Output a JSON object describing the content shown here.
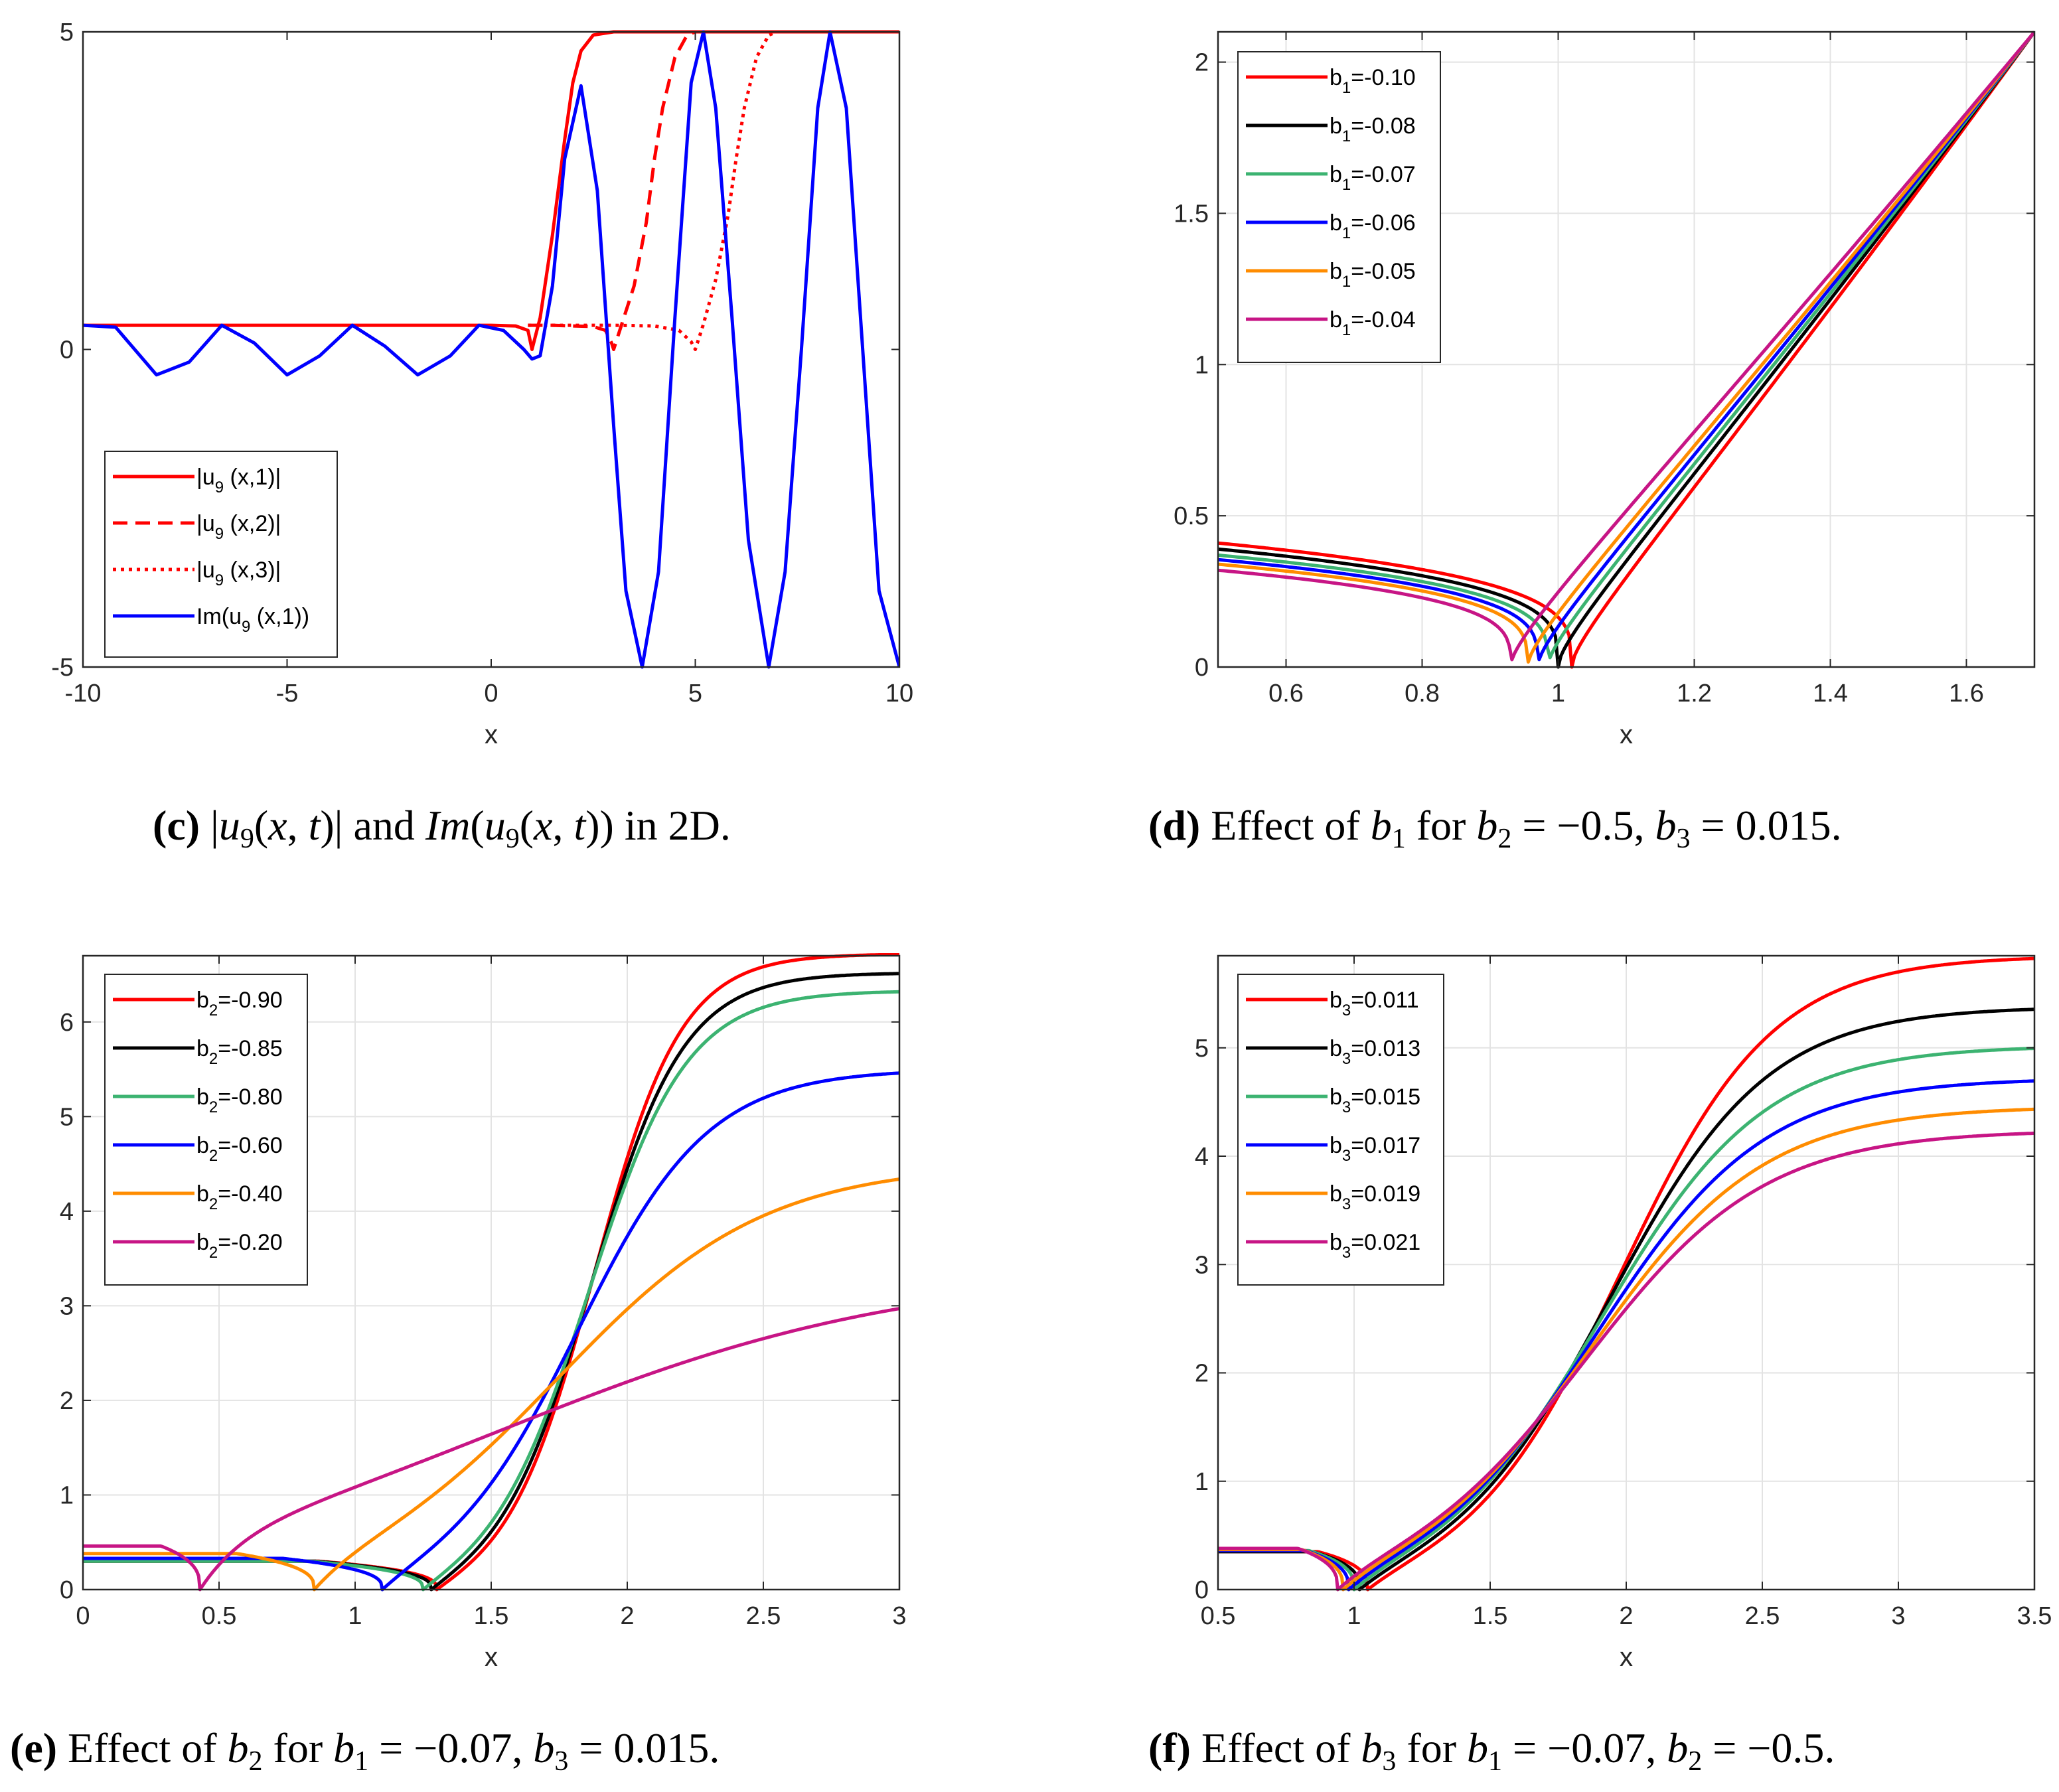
{
  "chart_data": [
    {
      "id": "c",
      "type": "line",
      "xlim": [
        -10,
        10
      ],
      "ylim": [
        -5,
        5
      ],
      "xticks": [
        -10,
        -5,
        0,
        5,
        10
      ],
      "yticks": [
        -5,
        0,
        5
      ],
      "tick_labels_x": [
        "-10",
        "-5",
        "0",
        "5",
        "10"
      ],
      "tick_labels_y": [
        "-5",
        "0",
        "5"
      ],
      "xlabel": "x",
      "ylabel": "",
      "grid": false,
      "legend_position": "bottom-left",
      "caption": {
        "tag": "(c)",
        "text": "|u9(x, t)| and Im(u9(x, t)) in 2D."
      },
      "series": [
        {
          "legend_main": "|u",
          "legend_sub": "9",
          "legend_rest": " (x,1)|",
          "color": "#ff0000",
          "dash": "solid",
          "x": [
            -10,
            -8,
            -6,
            -4,
            -2,
            0,
            0.6,
            0.9,
            1.0,
            1.2,
            1.5,
            1.8,
            2.0,
            2.2,
            2.5,
            3,
            5,
            7,
            10
          ],
          "y": [
            0.38,
            0.38,
            0.38,
            0.38,
            0.38,
            0.38,
            0.37,
            0.3,
            0.0,
            0.5,
            1.8,
            3.3,
            4.2,
            4.7,
            4.95,
            5,
            5,
            5,
            5
          ]
        },
        {
          "legend_main": "|u",
          "legend_sub": "9",
          "legend_rest": " (x,2)|",
          "color": "#ff0000",
          "dash": "dash",
          "x": [
            0.9,
            1.5,
            2.0,
            2.5,
            2.8,
            2.95,
            3.0,
            3.2,
            3.5,
            3.8,
            4.0,
            4.2,
            4.5,
            4.8,
            5.0
          ],
          "y": [
            0.38,
            0.38,
            0.37,
            0.36,
            0.3,
            0.1,
            0.0,
            0.4,
            1.0,
            2.0,
            3.0,
            3.8,
            4.6,
            4.95,
            5.0
          ]
        },
        {
          "legend_main": "|u",
          "legend_sub": "9",
          "legend_rest": " (x,3)|",
          "color": "#ff0000",
          "dash": "dot",
          "x": [
            0.9,
            2.0,
            3.0,
            4.0,
            4.6,
            4.9,
            5.0,
            5.2,
            5.5,
            5.8,
            6.0,
            6.2,
            6.5,
            6.8,
            7.0
          ],
          "y": [
            0.38,
            0.38,
            0.38,
            0.37,
            0.3,
            0.12,
            0.0,
            0.4,
            1.1,
            2.1,
            3.0,
            3.8,
            4.6,
            4.95,
            5.0
          ]
        },
        {
          "legend_main": "Im(u",
          "legend_sub": "9",
          "legend_rest": " (x,1))",
          "color": "#0000ff",
          "dash": "solid",
          "x": [
            -10,
            -9.2,
            -8.2,
            -7.4,
            -6.6,
            -5.8,
            -5.0,
            -4.2,
            -3.4,
            -2.6,
            -1.8,
            -1.0,
            -0.3,
            0.3,
            0.8,
            1.0,
            1.2,
            1.5,
            1.8,
            2.2,
            2.6,
            3.0,
            3.3,
            3.7,
            4.1,
            4.5,
            4.9,
            5.2,
            5.5,
            5.9,
            6.3,
            6.8,
            7.2,
            7.6,
            8.0,
            8.3,
            8.7,
            9.1,
            9.5,
            10
          ],
          "y": [
            0.38,
            0.35,
            -0.4,
            -0.2,
            0.38,
            0.1,
            -0.4,
            -0.1,
            0.38,
            0.05,
            -0.4,
            -0.1,
            0.38,
            0.3,
            0.0,
            -0.15,
            -0.1,
            1.0,
            3.0,
            4.15,
            2.5,
            -1.2,
            -3.8,
            -5.0,
            -3.5,
            0.5,
            4.2,
            5.0,
            3.8,
            0.5,
            -3.0,
            -5.0,
            -3.5,
            0.0,
            3.8,
            5.0,
            3.8,
            0.0,
            -3.8,
            -5.0
          ]
        }
      ]
    },
    {
      "id": "d",
      "type": "line",
      "xlim": [
        0.5,
        1.7
      ],
      "ylim": [
        0,
        2.1
      ],
      "xticks": [
        0.6,
        0.8,
        1.0,
        1.2,
        1.4,
        1.6
      ],
      "yticks": [
        0,
        0.5,
        1,
        1.5,
        2
      ],
      "tick_labels_x": [
        "0.6",
        "0.8",
        "1",
        "1.2",
        "1.4",
        "1.6"
      ],
      "tick_labels_y": [
        "0",
        "0.5",
        "1",
        "1.5",
        "2"
      ],
      "xlabel": "x",
      "ylabel": "",
      "grid": true,
      "legend_position": "top-left",
      "caption": {
        "tag": "(d)",
        "text": "Effect of b1 for b2 = −0.5, b3 = 0.015."
      },
      "series": [
        {
          "legend_main": "b",
          "legend_sub": "1",
          "legend_rest": "=-0.10",
          "color": "#ff0000",
          "cusp": 1.02,
          "y0": 0.41
        },
        {
          "legend_main": "b",
          "legend_sub": "1",
          "legend_rest": "=-0.08",
          "color": "#000000",
          "cusp": 1.0,
          "y0": 0.39
        },
        {
          "legend_main": "b",
          "legend_sub": "1",
          "legend_rest": "=-0.07",
          "color": "#3cb371",
          "cusp": 0.985,
          "y0": 0.37
        },
        {
          "legend_main": "b",
          "legend_sub": "1",
          "legend_rest": "=-0.06",
          "color": "#0000ff",
          "cusp": 0.97,
          "y0": 0.355
        },
        {
          "legend_main": "b",
          "legend_sub": "1",
          "legend_rest": "=-0.05",
          "color": "#ff8c00",
          "cusp": 0.955,
          "y0": 0.34
        },
        {
          "legend_main": "b",
          "legend_sub": "1",
          "legend_rest": "=-0.04",
          "color": "#c71585",
          "cusp": 0.93,
          "y0": 0.32
        }
      ]
    },
    {
      "id": "e",
      "type": "line",
      "xlim": [
        0,
        3
      ],
      "ylim": [
        0,
        6.7
      ],
      "xticks": [
        0,
        0.5,
        1,
        1.5,
        2,
        2.5,
        3
      ],
      "yticks": [
        0,
        1,
        2,
        3,
        4,
        5,
        6
      ],
      "tick_labels_x": [
        "0",
        "0.5",
        "1",
        "1.5",
        "2",
        "2.5",
        "3"
      ],
      "tick_labels_y": [
        "0",
        "1",
        "2",
        "3",
        "4",
        "5",
        "6"
      ],
      "xlabel": "x",
      "ylabel": "",
      "grid": true,
      "legend_position": "top-left",
      "caption": {
        "tag": "(e)",
        "text": "Effect of b2 for b1 = −0.07, b3 = 0.015."
      },
      "series": [
        {
          "legend_main": "b",
          "legend_sub": "2",
          "legend_rest": "=-0.90",
          "color": "#ff0000",
          "cusp": 1.3,
          "y0": 0.3,
          "top": 6.72,
          "mid": 1.88,
          "w": 0.16
        },
        {
          "legend_main": "b",
          "legend_sub": "2",
          "legend_rest": "=-0.85",
          "color": "#000000",
          "cusp": 1.28,
          "y0": 0.3,
          "top": 6.52,
          "mid": 1.87,
          "w": 0.17
        },
        {
          "legend_main": "b",
          "legend_sub": "2",
          "legend_rest": "=-0.80",
          "color": "#3cb371",
          "cusp": 1.25,
          "y0": 0.3,
          "top": 6.33,
          "mid": 1.86,
          "w": 0.18
        },
        {
          "legend_main": "b",
          "legend_sub": "2",
          "legend_rest": "=-0.60",
          "color": "#0000ff",
          "cusp": 1.1,
          "y0": 0.33,
          "top": 5.5,
          "mid": 1.82,
          "w": 0.24
        },
        {
          "legend_main": "b",
          "legend_sub": "2",
          "legend_rest": "=-0.40",
          "color": "#ff8c00",
          "cusp": 0.85,
          "y0": 0.38,
          "top": 4.5,
          "mid": 1.75,
          "w": 0.38
        },
        {
          "legend_main": "b",
          "legend_sub": "2",
          "legend_rest": "=-0.20",
          "color": "#c71585",
          "cusp": 0.43,
          "y0": 0.46,
          "top": 3.4,
          "mid": 1.55,
          "w": 0.75
        }
      ]
    },
    {
      "id": "f",
      "type": "line",
      "xlim": [
        0.5,
        3.5
      ],
      "ylim": [
        0,
        5.85
      ],
      "xticks": [
        0.5,
        1,
        1.5,
        2,
        2.5,
        3,
        3.5
      ],
      "yticks": [
        0,
        1,
        2,
        3,
        4,
        5
      ],
      "tick_labels_x": [
        "0.5",
        "1",
        "1.5",
        "2",
        "2.5",
        "3",
        "3.5"
      ],
      "tick_labels_y": [
        "0",
        "1",
        "2",
        "3",
        "4",
        "5"
      ],
      "xlabel": "x",
      "ylabel": "",
      "grid": true,
      "legend_position": "top-left",
      "caption": {
        "tag": "(f)",
        "text": "Effect of b3 for b1 = −0.07, b2 = −0.5."
      },
      "series": [
        {
          "legend_main": "b",
          "legend_sub": "3",
          "legend_rest": "=0.011",
          "color": "#ff0000",
          "cusp": 1.05,
          "y0": 0.35,
          "top": 5.85,
          "mid": 1.98,
          "w": 0.28
        },
        {
          "legend_main": "b",
          "legend_sub": "3",
          "legend_rest": "=0.013",
          "color": "#000000",
          "cusp": 1.02,
          "y0": 0.35,
          "top": 5.38,
          "mid": 1.94,
          "w": 0.29
        },
        {
          "legend_main": "b",
          "legend_sub": "3",
          "legend_rest": "=0.015",
          "color": "#3cb371",
          "cusp": 1.0,
          "y0": 0.36,
          "top": 5.02,
          "mid": 1.91,
          "w": 0.3
        },
        {
          "legend_main": "b",
          "legend_sub": "3",
          "legend_rest": "=0.017",
          "color": "#0000ff",
          "cusp": 0.98,
          "y0": 0.36,
          "top": 4.72,
          "mid": 1.89,
          "w": 0.31
        },
        {
          "legend_main": "b",
          "legend_sub": "3",
          "legend_rest": "=0.019",
          "color": "#ff8c00",
          "cusp": 0.96,
          "y0": 0.37,
          "top": 4.46,
          "mid": 1.87,
          "w": 0.32
        },
        {
          "legend_main": "b",
          "legend_sub": "3",
          "legend_rest": "=0.021",
          "color": "#c71585",
          "cusp": 0.94,
          "y0": 0.38,
          "top": 4.24,
          "mid": 1.85,
          "w": 0.33
        }
      ]
    }
  ]
}
